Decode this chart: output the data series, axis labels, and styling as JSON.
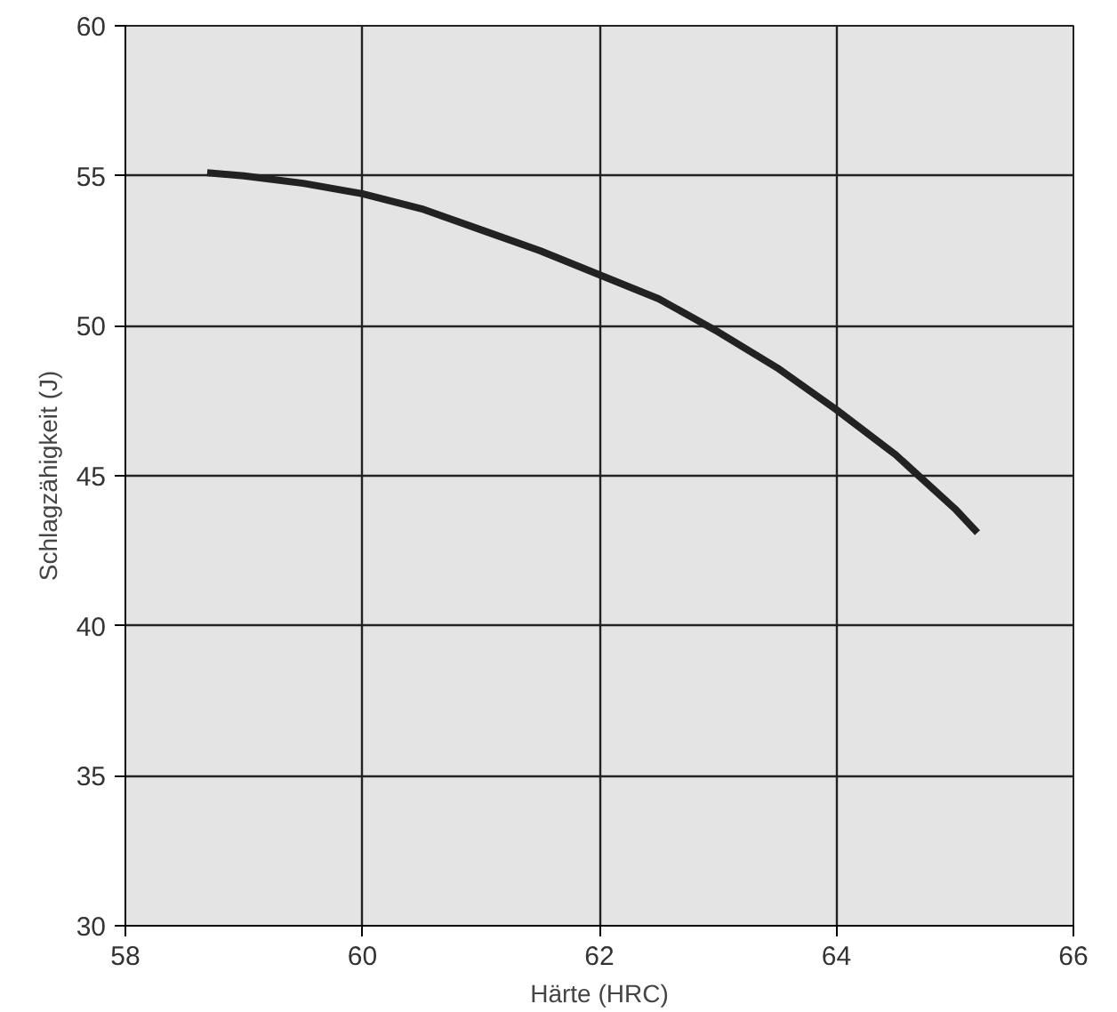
{
  "chart_data": {
    "type": "line",
    "xlabel": "Härte (HRC)",
    "ylabel": "Schlagzähigkeit (J)",
    "x": [
      58.69,
      59,
      59.5,
      60,
      60.5,
      61,
      61.5,
      62,
      62.5,
      63,
      63.5,
      64,
      64.5,
      65,
      65.19
    ],
    "series": [
      {
        "color": "#222222",
        "values": [
          55.1,
          55.0,
          54.75,
          54.4,
          53.9,
          53.2,
          52.5,
          51.7,
          50.9,
          49.8,
          48.6,
          47.2,
          45.7,
          43.9,
          43.1
        ]
      }
    ],
    "xlim": [
      58,
      66
    ],
    "ylim": [
      30,
      60
    ],
    "xticks": [
      58,
      60,
      62,
      64,
      66
    ],
    "yticks": [
      30,
      35,
      40,
      45,
      50,
      55,
      60
    ],
    "grid": true,
    "marker": "none",
    "line_style": "solid"
  }
}
